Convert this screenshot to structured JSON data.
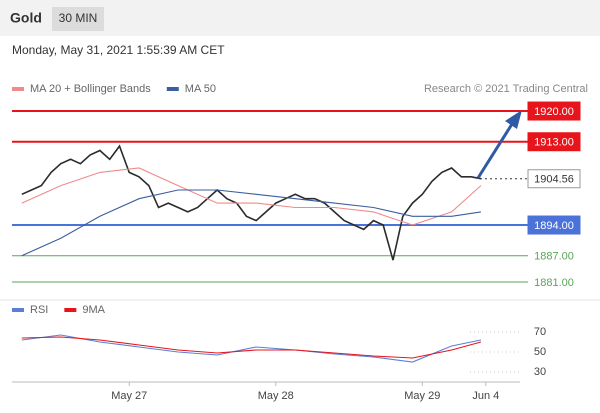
{
  "header": {
    "symbol": "Gold",
    "interval": "30 MIN",
    "timestamp": "Monday, May 31, 2021 1:55:39 AM CET",
    "credit": "Research © 2021 Trading Central"
  },
  "chart_data": [
    {
      "type": "line",
      "ylim": [
        1879,
        1924
      ],
      "xlim": [
        -1,
        51
      ],
      "levels": [
        {
          "value": 1920,
          "label": "1920.00",
          "color": "#e8141c",
          "style": "solid"
        },
        {
          "value": 1913,
          "label": "1913.00",
          "color": "#e8141c",
          "style": "solid"
        },
        {
          "value": 1904.56,
          "label": "1904.56",
          "color": "#333333",
          "style": "dotted"
        },
        {
          "value": 1894,
          "label": "1894.00",
          "color": "#4a72d8",
          "style": "solid"
        },
        {
          "value": 1887,
          "label": "1887.00",
          "color": "#5aa55a",
          "style": "thin"
        },
        {
          "value": 1881,
          "label": "1881.00",
          "color": "#5aa55a",
          "style": "thin"
        }
      ],
      "series": [
        {
          "color": "#2b2b2b",
          "x": [
            0,
            1,
            2,
            3,
            4,
            5,
            6,
            7,
            8,
            9,
            10,
            11,
            12,
            13,
            14,
            15,
            16,
            17,
            18,
            19,
            20,
            21,
            22,
            23,
            24,
            25,
            26,
            27,
            28,
            29,
            30,
            31,
            32,
            33,
            34,
            35,
            36,
            37,
            38,
            39,
            40,
            41,
            42,
            43,
            44,
            45,
            46,
            47
          ],
          "values": [
            1901,
            1902,
            1903,
            1906,
            1908,
            1909,
            1908,
            1910,
            1911,
            1909,
            1912,
            1906,
            1905,
            1903,
            1898,
            1899,
            1898,
            1897,
            1898,
            1900,
            1902,
            1900,
            1899,
            1896,
            1895,
            1897,
            1899,
            1900,
            1901,
            1900,
            1900,
            1899,
            1897,
            1895,
            1894,
            1893,
            1895,
            1894,
            1886,
            1896,
            1899,
            1901,
            1904,
            1906,
            1907,
            1905,
            1905,
            1904.56
          ]
        },
        {
          "name": "MA 20 + Bollinger Bands",
          "color": "#f08a8a",
          "x": [
            0,
            4,
            8,
            12,
            16,
            20,
            24,
            28,
            32,
            36,
            40,
            44,
            47
          ],
          "values": [
            1899,
            1903,
            1906,
            1907,
            1903,
            1899,
            1899,
            1898,
            1898,
            1897,
            1894,
            1897,
            1903
          ]
        },
        {
          "name": "MA 50",
          "color": "#3a5f9e",
          "x": [
            0,
            4,
            8,
            12,
            16,
            20,
            24,
            28,
            32,
            36,
            40,
            44,
            47
          ],
          "values": [
            1887,
            1891,
            1896,
            1900,
            1902,
            1902,
            1901,
            1900,
            1899,
            1898,
            1896,
            1896,
            1897
          ]
        }
      ]
    },
    {
      "type": "line",
      "ylim": [
        20,
        80
      ],
      "xlim": [
        -1,
        51
      ],
      "yticks": [
        30,
        50,
        70
      ],
      "xticks": [
        {
          "value": 11,
          "label": "May 27"
        },
        {
          "value": 26,
          "label": "May 28"
        },
        {
          "value": 41,
          "label": "May 29"
        },
        {
          "value": 47.5,
          "label": "Jun 4"
        }
      ],
      "series": [
        {
          "name": "RSI",
          "color": "#5b7fd6",
          "x": [
            0,
            4,
            8,
            12,
            16,
            20,
            24,
            28,
            32,
            36,
            40,
            44,
            47
          ],
          "values": [
            62,
            67,
            60,
            55,
            50,
            47,
            55,
            52,
            48,
            45,
            40,
            56,
            62
          ]
        },
        {
          "name": "9MA",
          "color": "#e8141c",
          "x": [
            0,
            4,
            8,
            12,
            16,
            20,
            24,
            28,
            32,
            36,
            40,
            44,
            47
          ],
          "values": [
            64,
            65,
            62,
            57,
            52,
            49,
            52,
            52,
            49,
            46,
            44,
            52,
            60
          ]
        }
      ]
    }
  ]
}
